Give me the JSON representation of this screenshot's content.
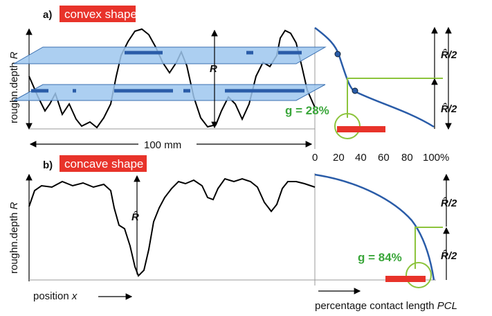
{
  "panel_a": {
    "label": "a)",
    "title": "convex shape",
    "y_axis_label": "roughn.depth",
    "y_axis_var": "R",
    "length_label": "100 mm",
    "height_label": "R",
    "half_labels": [
      "R̂/2",
      "R̂/2"
    ],
    "g_label": "g = 28%",
    "pcl_ticks": [
      "0",
      "20",
      "40",
      "60",
      "80",
      "100%"
    ]
  },
  "panel_b": {
    "label": "b)",
    "title": "concave shape",
    "y_axis_label": "roughn.depth",
    "y_axis_var": "R",
    "height_label": "R̂",
    "half_labels": [
      "R̂/2",
      "R̂/2"
    ],
    "g_label": "g = 84%",
    "x_axis_label": "position",
    "x_axis_var": "x",
    "pcl_axis_label": "percentage contact length",
    "pcl_axis_var": "PCL"
  }
}
